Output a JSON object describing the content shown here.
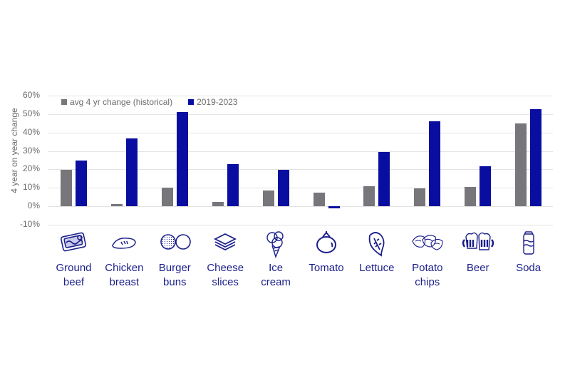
{
  "chart_data": {
    "type": "bar",
    "title": "",
    "xlabel": "",
    "ylabel": "4 year on year change",
    "ylim": [
      -10,
      60
    ],
    "yticks": [
      "60%",
      "50%",
      "40%",
      "30%",
      "20%",
      "10%",
      "0%",
      "-10%"
    ],
    "grid": true,
    "legend_position": "top-left",
    "categories": [
      "Ground beef",
      "Chicken breast",
      "Burger buns",
      "Cheese slices",
      "Ice cream",
      "Tomato",
      "Lettuce",
      "Potato chips",
      "Beer",
      "Soda"
    ],
    "category_lines": [
      [
        "Ground",
        "beef"
      ],
      [
        "Chicken",
        "breast"
      ],
      [
        "Burger",
        "buns"
      ],
      [
        "Cheese",
        "slices"
      ],
      [
        "Ice",
        "cream"
      ],
      [
        "Tomato"
      ],
      [
        "Lettuce"
      ],
      [
        "Potato",
        "chips"
      ],
      [
        "Beer"
      ],
      [
        "Soda"
      ]
    ],
    "category_icons": [
      "ground-beef-icon",
      "chicken-breast-icon",
      "burger-buns-icon",
      "cheese-slices-icon",
      "ice-cream-icon",
      "tomato-icon",
      "lettuce-icon",
      "potato-chips-icon",
      "beer-icon",
      "soda-icon"
    ],
    "series": [
      {
        "name": "avg 4 yr change (historical)",
        "color": "#77777b",
        "values": [
          19.6,
          1.3,
          10.1,
          2.2,
          8.5,
          7.5,
          10.9,
          9.7,
          10.4,
          45.1
        ]
      },
      {
        "name": "2019-2023",
        "color": "#0a0ea0",
        "values": [
          24.8,
          37.0,
          51.3,
          23.0,
          19.8,
          -1.0,
          29.3,
          46.3,
          21.7,
          52.8
        ]
      }
    ]
  },
  "colors": {
    "label_text": "#1b1f8a",
    "axis_text": "#6b6b6b",
    "grid": "#e4e4e4"
  }
}
